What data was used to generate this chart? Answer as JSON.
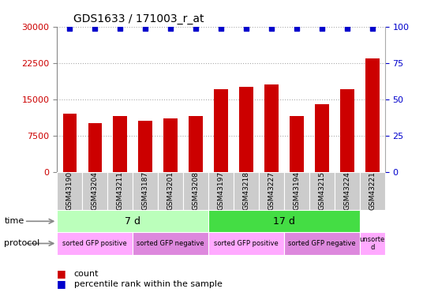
{
  "title": "GDS1633 / 171003_r_at",
  "samples": [
    "GSM43190",
    "GSM43204",
    "GSM43211",
    "GSM43187",
    "GSM43201",
    "GSM43208",
    "GSM43197",
    "GSM43218",
    "GSM43227",
    "GSM43194",
    "GSM43215",
    "GSM43224",
    "GSM43221"
  ],
  "counts": [
    12000,
    10000,
    11500,
    10500,
    11000,
    11500,
    17000,
    17500,
    18000,
    11500,
    14000,
    17000,
    23500
  ],
  "percentile_ranks": [
    99,
    99,
    99,
    99,
    99,
    99,
    99,
    99,
    99,
    99,
    99,
    99,
    99
  ],
  "bar_color": "#cc0000",
  "dot_color": "#0000cc",
  "ylim_left": [
    0,
    30000
  ],
  "ylim_right": [
    0,
    100
  ],
  "yticks_left": [
    0,
    7500,
    15000,
    22500,
    30000
  ],
  "yticks_right": [
    0,
    25,
    50,
    75,
    100
  ],
  "time_groups": [
    {
      "label": "7 d",
      "start": 0,
      "end": 6,
      "color": "#bbffbb"
    },
    {
      "label": "17 d",
      "start": 6,
      "end": 12,
      "color": "#44dd44"
    }
  ],
  "protocol_groups": [
    {
      "label": "sorted GFP positive",
      "start": 0,
      "end": 3,
      "color": "#ffaaff"
    },
    {
      "label": "sorted GFP negative",
      "start": 3,
      "end": 6,
      "color": "#dd88dd"
    },
    {
      "label": "sorted GFP positive",
      "start": 6,
      "end": 9,
      "color": "#ffaaff"
    },
    {
      "label": "sorted GFP negative",
      "start": 9,
      "end": 12,
      "color": "#dd88dd"
    },
    {
      "label": "unsorte\nd",
      "start": 12,
      "end": 13,
      "color": "#ffaaff"
    }
  ],
  "bg_color": "#ffffff",
  "tick_label_color_left": "#cc0000",
  "tick_label_color_right": "#0000cc",
  "grid_color": "#aaaaaa",
  "xticklabel_bg": "#cccccc"
}
